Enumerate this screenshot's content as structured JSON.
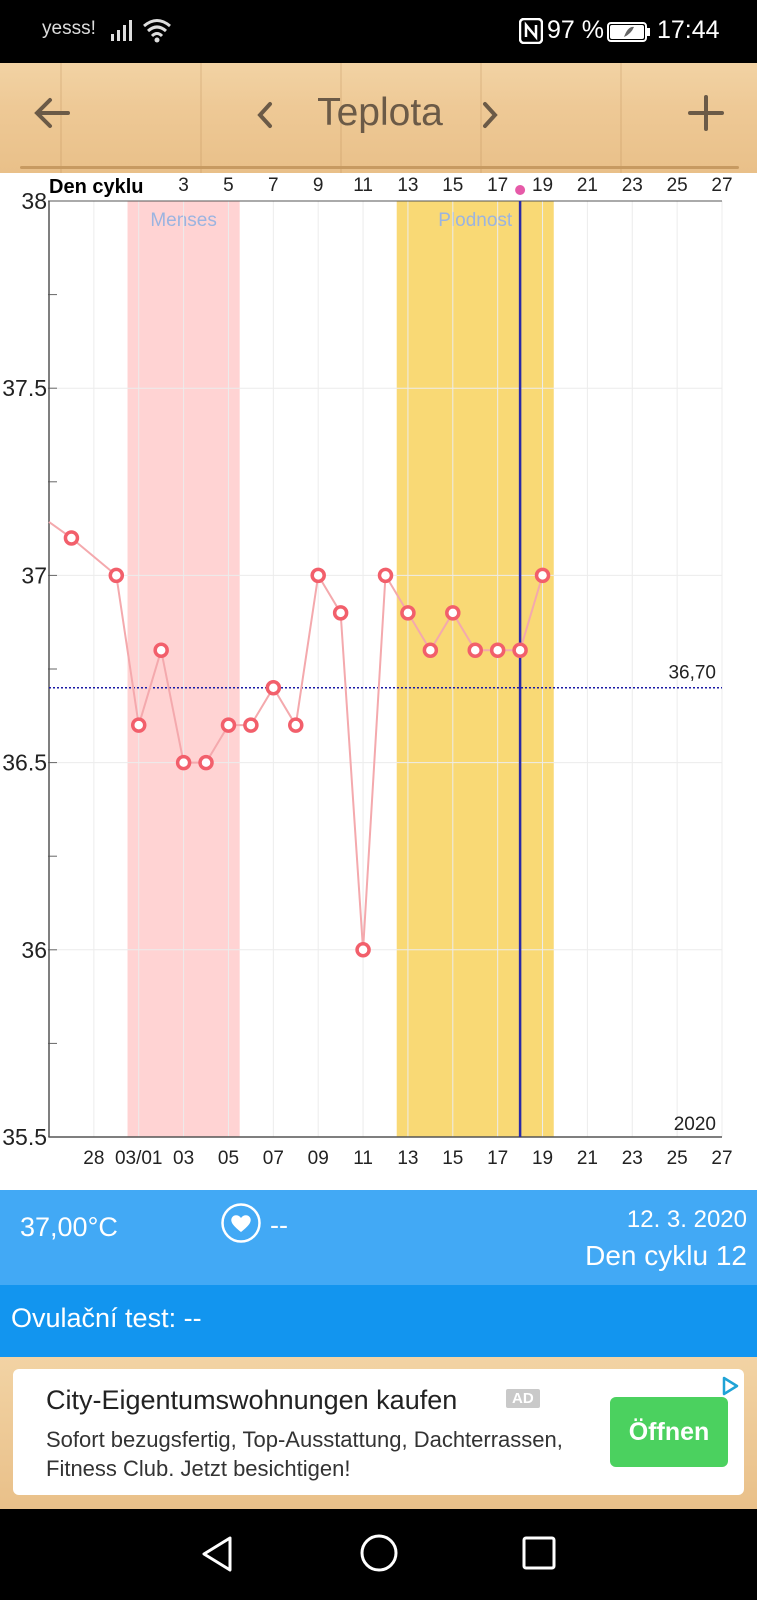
{
  "status_bar": {
    "carrier": "yesss!",
    "battery_percent": "97 %",
    "time": "17:44",
    "icons": [
      "signal-icon",
      "wifi-icon",
      "nfc-icon",
      "battery-icon"
    ]
  },
  "toolbar": {
    "title": "Teplota",
    "icons": [
      "arrow-left-icon",
      "chevron-left-icon",
      "chevron-right-icon",
      "plus-icon"
    ]
  },
  "chart_data": {
    "type": "line",
    "top_axis_label": "Den cyklu",
    "top_ticks": [
      {
        "day": 3,
        "label": "3"
      },
      {
        "day": 5,
        "label": "5"
      },
      {
        "day": 7,
        "label": "7"
      },
      {
        "day": 9,
        "label": "9"
      },
      {
        "day": 11,
        "label": "11"
      },
      {
        "day": 13,
        "label": "13"
      },
      {
        "day": 15,
        "label": "15"
      },
      {
        "day": 17,
        "label": "17"
      },
      {
        "day": 19,
        "label": "19"
      },
      {
        "day": 21,
        "label": "21"
      },
      {
        "day": 23,
        "label": "23"
      },
      {
        "day": 25,
        "label": "25"
      },
      {
        "day": 27,
        "label": "27"
      }
    ],
    "bottom_ticks": [
      {
        "day": -1,
        "label": "28"
      },
      {
        "day": 1,
        "label": "03/01"
      },
      {
        "day": 3,
        "label": "03"
      },
      {
        "day": 5,
        "label": "05"
      },
      {
        "day": 7,
        "label": "07"
      },
      {
        "day": 9,
        "label": "09"
      },
      {
        "day": 11,
        "label": "11"
      },
      {
        "day": 13,
        "label": "13"
      },
      {
        "day": 15,
        "label": "15"
      },
      {
        "day": 17,
        "label": "17"
      },
      {
        "day": 19,
        "label": "19"
      },
      {
        "day": 21,
        "label": "21"
      },
      {
        "day": 23,
        "label": "23"
      },
      {
        "day": 25,
        "label": "25"
      },
      {
        "day": 27,
        "label": "27"
      }
    ],
    "year_label": "2020",
    "ylim": [
      35.5,
      38
    ],
    "y_ticks": [
      "35.5",
      "36",
      "36.5",
      "37",
      "37.5",
      "38"
    ],
    "xlim": [
      -3,
      27
    ],
    "series": [
      {
        "points": [
          {
            "day": -2,
            "temp": 37.1
          },
          {
            "day": 0,
            "temp": 37.0
          },
          {
            "day": 1,
            "temp": 36.6
          },
          {
            "day": 2,
            "temp": 36.8
          },
          {
            "day": 3,
            "temp": 36.5
          },
          {
            "day": 4,
            "temp": 36.5
          },
          {
            "day": 5,
            "temp": 36.6
          },
          {
            "day": 6,
            "temp": 36.6
          },
          {
            "day": 7,
            "temp": 36.7
          },
          {
            "day": 8,
            "temp": 36.6
          },
          {
            "day": 9,
            "temp": 37.0
          },
          {
            "day": 10,
            "temp": 36.9
          },
          {
            "day": 11,
            "temp": 36.0
          },
          {
            "day": 12,
            "temp": 37.0
          },
          {
            "day": 13,
            "temp": 36.9
          },
          {
            "day": 14,
            "temp": 36.8
          },
          {
            "day": 15,
            "temp": 36.9
          },
          {
            "day": 16,
            "temp": 36.8
          },
          {
            "day": 17,
            "temp": 36.8
          },
          {
            "day": 18,
            "temp": 36.8
          },
          {
            "day": 19,
            "temp": 37.0
          }
        ],
        "color": "#f25f6b"
      }
    ],
    "baseline": {
      "temp": 36.7,
      "label": "36,70",
      "color": "#1a1aa6"
    },
    "bands": [
      {
        "label": "Menses",
        "from_day": 0.5,
        "to_day": 5.5,
        "color": "#ffd3d3",
        "label_color": "#9bb4e0"
      },
      {
        "label": "Plodnost",
        "from_day": 12.5,
        "to_day": 19.5,
        "color": "#f9d975",
        "label_color": "#9bb4e0"
      }
    ],
    "current_day_marker": {
      "day": 18,
      "color": "#2a2aa8",
      "dot_color": "#e65aa8"
    },
    "grid": true
  },
  "info_bar": {
    "temperature": "37,00°C",
    "heart_value": "--",
    "date": "12. 3. 2020",
    "cycle_day": "Den cyklu 12"
  },
  "ovulation": {
    "label": "Ovulační test: --"
  },
  "ad": {
    "title": "City-Eigentumswohnungen kaufen",
    "badge": "AD",
    "description": "Sofort bezugsfertig, Top-Ausstattung, Dachterrassen, Fitness Club. Jetzt besichtigen!",
    "button": "Öffnen"
  }
}
